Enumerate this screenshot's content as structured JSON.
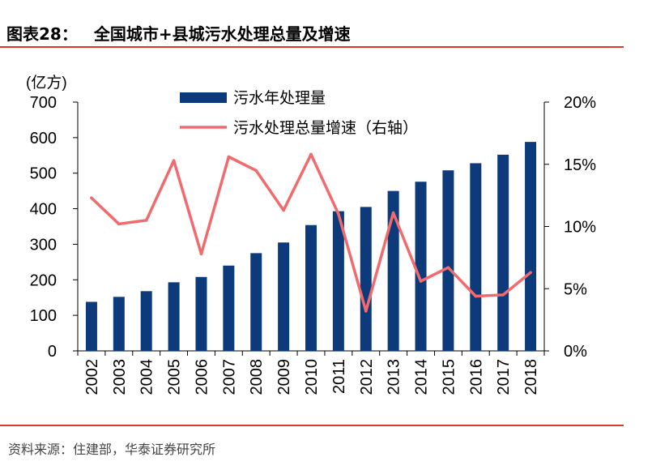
{
  "title_parts": [
    "图表28：",
    "全国城市+县城污水处理总量及增速"
  ],
  "source": "资料来源：住建部，华泰证券研究所",
  "colors": {
    "bar": "#0d3a7b",
    "line": "#f06a6e",
    "rule": "#d9382f"
  },
  "chart_data": {
    "type": "bar+line",
    "categories": [
      "2002",
      "2003",
      "2004",
      "2005",
      "2006",
      "2007",
      "2008",
      "2009",
      "2010",
      "2011",
      "2012",
      "2013",
      "2014",
      "2015",
      "2016",
      "2017",
      "2018"
    ],
    "left_axis": {
      "unit_label": "(亿方)",
      "range": [
        0,
        700
      ],
      "ticks": [
        "0",
        "100",
        "200",
        "300",
        "400",
        "500",
        "600",
        "700"
      ]
    },
    "right_axis": {
      "range": [
        0,
        20
      ],
      "ticks": [
        "0%",
        "5%",
        "10%",
        "15%",
        "20%"
      ]
    },
    "series": [
      {
        "name": "污水年处理量",
        "type": "bar",
        "axis": "left",
        "values": [
          138,
          152,
          168,
          193,
          208,
          240,
          275,
          305,
          354,
          393,
          405,
          450,
          476,
          508,
          528,
          552,
          588
        ]
      },
      {
        "name": "污水处理总量增速（右轴）",
        "type": "line",
        "axis": "right",
        "values": [
          12.3,
          10.2,
          10.5,
          15.3,
          7.8,
          15.6,
          14.5,
          11.3,
          15.8,
          11.0,
          3.2,
          11.1,
          5.6,
          6.7,
          4.4,
          4.5,
          6.3
        ]
      }
    ],
    "legend_position": "top"
  }
}
